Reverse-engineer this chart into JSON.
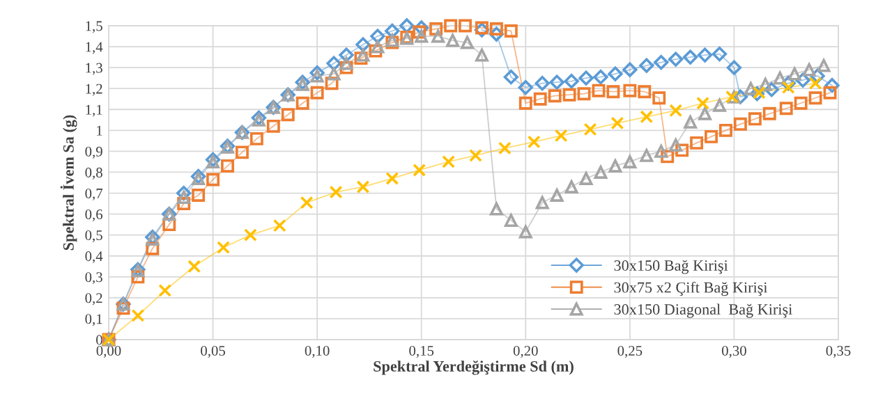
{
  "chart_data": {
    "type": "line",
    "xlabel": "Spektral Yerdeğiştirme Sd (m)",
    "ylabel": "Spektral İvem Sa (g)",
    "xlim": [
      0,
      0.35
    ],
    "xticks": [
      {
        "value": 0,
        "label": "0,00"
      },
      {
        "value": 0.05,
        "label": "0,05"
      },
      {
        "value": 0.1,
        "label": "0,10"
      },
      {
        "value": 0.15,
        "label": "0,15"
      },
      {
        "value": 0.2,
        "label": "0,20"
      },
      {
        "value": 0.25,
        "label": "0,25"
      },
      {
        "value": 0.3,
        "label": "0,30"
      },
      {
        "value": 0.35,
        "label": "0,35"
      }
    ],
    "ylim": [
      0,
      1.5
    ],
    "yticks": [
      0,
      {
        "value": 0.1,
        "label": "0,1"
      },
      {
        "value": 0.2,
        "label": "0,2"
      },
      {
        "value": 0.3,
        "label": "0,3"
      },
      {
        "value": 0.4,
        "label": "0,4"
      },
      {
        "value": 0.5,
        "label": "0,5"
      },
      {
        "value": 0.6,
        "label": "0,6"
      },
      {
        "value": 0.7,
        "label": "0,7"
      },
      {
        "value": 0.8,
        "label": "0,8"
      },
      {
        "value": 0.9,
        "label": "0,9"
      },
      1,
      {
        "value": 1.1,
        "label": "1,1"
      },
      {
        "value": 1.2,
        "label": "1,2"
      },
      {
        "value": 1.3,
        "label": "1,3"
      },
      {
        "value": 1.4,
        "label": "1,4"
      },
      {
        "value": 1.5,
        "label": "1,5"
      }
    ],
    "grid": true,
    "legend": "bottom right",
    "series": [
      {
        "name": "30x150 Bağ Kirişi",
        "color": "#5b9bd5",
        "marker": "diamond",
        "x": [
          0,
          0.007,
          0.014,
          0.021,
          0.029,
          0.036,
          0.043,
          0.05,
          0.057,
          0.064,
          0.072,
          0.079,
          0.086,
          0.093,
          0.1,
          0.108,
          0.114,
          0.122,
          0.129,
          0.136,
          0.143,
          0.15,
          0.158,
          0.165,
          0.172,
          0.179,
          0.186,
          0.193,
          0.2,
          0.208,
          0.215,
          0.222,
          0.229,
          0.236,
          0.243,
          0.25,
          0.258,
          0.265,
          0.272,
          0.279,
          0.286,
          0.293,
          0.3,
          0.303,
          0.311,
          0.318,
          0.326,
          0.333,
          0.34,
          0.347
        ],
        "values": [
          0,
          0.17,
          0.335,
          0.49,
          0.6,
          0.7,
          0.78,
          0.86,
          0.925,
          0.99,
          1.06,
          1.11,
          1.17,
          1.23,
          1.275,
          1.32,
          1.36,
          1.41,
          1.45,
          1.475,
          1.5,
          1.49,
          null,
          null,
          null,
          1.48,
          1.46,
          1.255,
          1.205,
          1.225,
          1.23,
          1.235,
          1.25,
          1.255,
          1.27,
          1.29,
          1.31,
          1.325,
          1.34,
          1.35,
          1.36,
          1.365,
          1.3,
          1.16,
          1.175,
          1.195,
          1.225,
          1.24,
          1.26,
          1.215
        ]
      },
      {
        "name": "30x75 x2 Çift Bağ Kirişi",
        "color": "#ed7d31",
        "marker": "square",
        "x": [
          0,
          0.007,
          0.014,
          0.021,
          0.029,
          0.036,
          0.043,
          0.05,
          0.057,
          0.064,
          0.071,
          0.079,
          0.086,
          0.093,
          0.1,
          0.107,
          0.114,
          0.121,
          0.128,
          0.136,
          0.143,
          0.149,
          0.157,
          0.164,
          0.171,
          0.179,
          0.186,
          0.193,
          0.2,
          0.207,
          0.214,
          0.221,
          0.228,
          0.235,
          0.242,
          0.25,
          0.257,
          0.264,
          0.268,
          0.275,
          0.282,
          0.289,
          0.296,
          0.303,
          0.31,
          0.317,
          0.325,
          0.332,
          0.339,
          0.346
        ],
        "values": [
          0,
          0.15,
          0.3,
          0.435,
          0.55,
          0.65,
          0.69,
          0.765,
          0.83,
          0.895,
          0.96,
          1.02,
          1.075,
          1.13,
          1.18,
          1.225,
          1.3,
          1.345,
          1.38,
          1.42,
          1.445,
          1.47,
          1.485,
          1.5,
          1.5,
          1.49,
          1.485,
          1.475,
          1.13,
          1.15,
          1.165,
          1.17,
          1.175,
          1.19,
          1.185,
          1.19,
          1.185,
          1.155,
          0.875,
          0.905,
          0.94,
          0.97,
          1.0,
          1.03,
          1.055,
          1.08,
          1.105,
          1.13,
          1.155,
          1.18
        ]
      },
      {
        "name": "30x150 Diagonal  Bağ Kirişi",
        "color": "#a5a5a5",
        "marker": "triangle",
        "x": [
          0,
          0.007,
          0.014,
          0.021,
          0.029,
          0.036,
          0.043,
          0.05,
          0.057,
          0.064,
          0.072,
          0.079,
          0.086,
          0.093,
          0.1,
          0.108,
          0.114,
          0.122,
          0.129,
          0.136,
          0.143,
          0.15,
          0.158,
          0.165,
          0.172,
          0.179,
          0.186,
          0.193,
          0.2,
          0.208,
          0.215,
          0.222,
          0.229,
          0.236,
          0.243,
          0.25,
          0.258,
          0.265,
          0.272,
          0.279,
          0.286,
          0.293,
          0.3,
          0.308,
          0.315,
          0.322,
          0.329,
          0.336,
          0.343
        ],
        "values": [
          0,
          0.17,
          0.33,
          0.48,
          0.6,
          0.68,
          0.77,
          0.85,
          0.92,
          0.99,
          1.05,
          1.11,
          1.17,
          1.22,
          1.26,
          1.27,
          1.32,
          1.36,
          1.4,
          1.43,
          1.44,
          1.45,
          1.45,
          1.43,
          1.42,
          1.36,
          0.625,
          0.57,
          0.515,
          0.655,
          0.69,
          0.73,
          0.77,
          0.8,
          0.83,
          0.85,
          0.88,
          0.9,
          0.93,
          1.04,
          1.08,
          1.12,
          1.16,
          1.2,
          1.22,
          1.25,
          1.27,
          1.29,
          1.31
        ]
      },
      {
        "color": "#ffc000",
        "marker": "cross",
        "x": [
          0,
          0.014,
          0.027,
          0.041,
          0.055,
          0.068,
          0.082,
          0.095,
          0.109,
          0.122,
          0.136,
          0.149,
          0.163,
          0.176,
          0.19,
          0.204,
          0.217,
          0.231,
          0.244,
          0.258,
          0.272,
          0.285,
          0.299,
          0.312,
          0.326,
          0.339
        ],
        "values": [
          0,
          0.115,
          0.235,
          0.35,
          0.44,
          0.5,
          0.545,
          0.655,
          0.705,
          0.73,
          0.77,
          0.81,
          0.85,
          0.88,
          0.915,
          0.945,
          0.975,
          1.005,
          1.035,
          1.065,
          1.095,
          1.13,
          1.16,
          1.18,
          1.205,
          1.225
        ]
      }
    ]
  }
}
